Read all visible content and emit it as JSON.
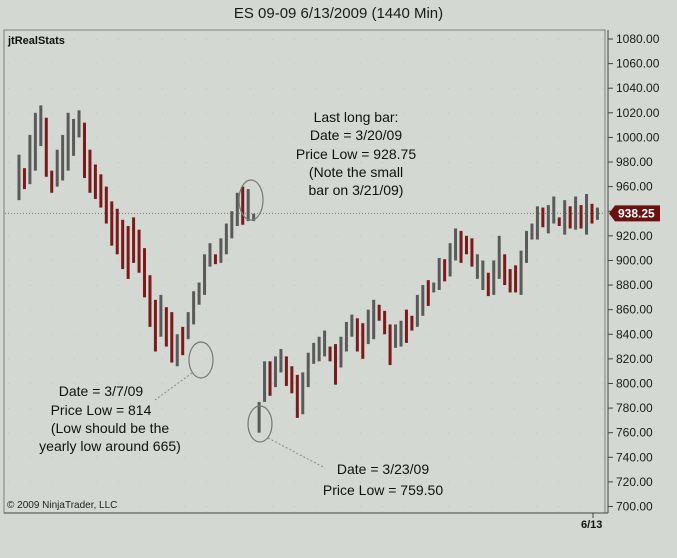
{
  "title": "ES 09-09  6/13/2009 (1440 Min)",
  "indicator_name": "jtRealStats",
  "copyright": "© 2009 NinjaTrader, LLC",
  "colors": {
    "up": "#5a5a5a",
    "down": "#7a1a1a",
    "price_marker": "#6b1010"
  },
  "chart_data": {
    "type": "ohlc",
    "ylim": [
      700,
      1085
    ],
    "y_ticks": [
      "1080.00",
      "1060.00",
      "1040.00",
      "1020.00",
      "1000.00",
      "980.00",
      "960.00",
      "940.00",
      "920.00",
      "900.00",
      "880.00",
      "860.00",
      "840.00",
      "820.00",
      "800.00",
      "780.00",
      "760.00",
      "740.00",
      "720.00",
      "700.00"
    ],
    "x_tick": "6/13",
    "last_price": 938.25,
    "last_price_label": "938.25",
    "bars": [
      {
        "h": 986,
        "l": 949,
        "up": true
      },
      {
        "h": 975,
        "l": 958,
        "up": false
      },
      {
        "h": 1002,
        "l": 962,
        "up": true
      },
      {
        "h": 1020,
        "l": 973,
        "up": true
      },
      {
        "h": 1026,
        "l": 993,
        "up": true
      },
      {
        "h": 1016,
        "l": 968,
        "up": false
      },
      {
        "h": 973,
        "l": 955,
        "up": false
      },
      {
        "h": 990,
        "l": 960,
        "up": true
      },
      {
        "h": 1002,
        "l": 965,
        "up": true
      },
      {
        "h": 1020,
        "l": 973,
        "up": true
      },
      {
        "h": 1015,
        "l": 985,
        "up": true
      },
      {
        "h": 1022,
        "l": 1000,
        "up": true
      },
      {
        "h": 1012,
        "l": 967,
        "up": false
      },
      {
        "h": 990,
        "l": 955,
        "up": false
      },
      {
        "h": 978,
        "l": 950,
        "up": false
      },
      {
        "h": 970,
        "l": 943,
        "up": false
      },
      {
        "h": 960,
        "l": 930,
        "up": false
      },
      {
        "h": 948,
        "l": 912,
        "up": false
      },
      {
        "h": 942,
        "l": 905,
        "up": false
      },
      {
        "h": 933,
        "l": 893,
        "up": false
      },
      {
        "h": 928,
        "l": 885,
        "up": false
      },
      {
        "h": 935,
        "l": 898,
        "up": false
      },
      {
        "h": 925,
        "l": 890,
        "up": false
      },
      {
        "h": 910,
        "l": 870,
        "up": false
      },
      {
        "h": 888,
        "l": 846,
        "up": false
      },
      {
        "h": 868,
        "l": 826,
        "up": false
      },
      {
        "h": 872,
        "l": 838,
        "up": true
      },
      {
        "h": 862,
        "l": 830,
        "up": false
      },
      {
        "h": 858,
        "l": 817,
        "up": false
      },
      {
        "h": 840,
        "l": 814,
        "up": true
      },
      {
        "h": 846,
        "l": 823,
        "up": false
      },
      {
        "h": 858,
        "l": 836,
        "up": true
      },
      {
        "h": 875,
        "l": 848,
        "up": true
      },
      {
        "h": 882,
        "l": 864,
        "up": true
      },
      {
        "h": 905,
        "l": 872,
        "up": true
      },
      {
        "h": 914,
        "l": 895,
        "up": true
      },
      {
        "h": 905,
        "l": 897,
        "up": false
      },
      {
        "h": 918,
        "l": 898,
        "up": true
      },
      {
        "h": 930,
        "l": 905,
        "up": true
      },
      {
        "h": 940,
        "l": 918,
        "up": true
      },
      {
        "h": 955,
        "l": 928,
        "up": true
      },
      {
        "h": 960,
        "l": 929,
        "up": false
      },
      {
        "h": 958,
        "l": 932,
        "up": true
      },
      {
        "h": 938,
        "l": 932,
        "up": true
      },
      {
        "h": 785,
        "l": 760,
        "up": true
      },
      {
        "h": 818,
        "l": 785,
        "up": true
      },
      {
        "h": 818,
        "l": 790,
        "up": false
      },
      {
        "h": 822,
        "l": 797,
        "up": true
      },
      {
        "h": 828,
        "l": 809,
        "up": true
      },
      {
        "h": 822,
        "l": 798,
        "up": false
      },
      {
        "h": 814,
        "l": 792,
        "up": false
      },
      {
        "h": 807,
        "l": 772,
        "up": false
      },
      {
        "h": 809,
        "l": 775,
        "up": true
      },
      {
        "h": 825,
        "l": 797,
        "up": true
      },
      {
        "h": 833,
        "l": 816,
        "up": true
      },
      {
        "h": 838,
        "l": 818,
        "up": true
      },
      {
        "h": 843,
        "l": 822,
        "up": true
      },
      {
        "h": 830,
        "l": 818,
        "up": false
      },
      {
        "h": 832,
        "l": 799,
        "up": false
      },
      {
        "h": 838,
        "l": 813,
        "up": true
      },
      {
        "h": 850,
        "l": 826,
        "up": true
      },
      {
        "h": 856,
        "l": 838,
        "up": true
      },
      {
        "h": 853,
        "l": 826,
        "up": false
      },
      {
        "h": 849,
        "l": 820,
        "up": false
      },
      {
        "h": 860,
        "l": 832,
        "up": true
      },
      {
        "h": 868,
        "l": 836,
        "up": true
      },
      {
        "h": 864,
        "l": 851,
        "up": false
      },
      {
        "h": 859,
        "l": 840,
        "up": false
      },
      {
        "h": 848,
        "l": 815,
        "up": false
      },
      {
        "h": 848,
        "l": 829,
        "up": true
      },
      {
        "h": 851,
        "l": 830,
        "up": true
      },
      {
        "h": 860,
        "l": 833,
        "up": false
      },
      {
        "h": 855,
        "l": 843,
        "up": false
      },
      {
        "h": 872,
        "l": 846,
        "up": true
      },
      {
        "h": 880,
        "l": 855,
        "up": true
      },
      {
        "h": 884,
        "l": 863,
        "up": false
      },
      {
        "h": 882,
        "l": 874,
        "up": true
      },
      {
        "h": 902,
        "l": 876,
        "up": true
      },
      {
        "h": 901,
        "l": 883,
        "up": false
      },
      {
        "h": 914,
        "l": 887,
        "up": true
      },
      {
        "h": 926,
        "l": 900,
        "up": true
      },
      {
        "h": 924,
        "l": 898,
        "up": false
      },
      {
        "h": 920,
        "l": 905,
        "up": false
      },
      {
        "h": 918,
        "l": 895,
        "up": false
      },
      {
        "h": 905,
        "l": 885,
        "up": true
      },
      {
        "h": 900,
        "l": 876,
        "up": true
      },
      {
        "h": 890,
        "l": 871,
        "up": false
      },
      {
        "h": 900,
        "l": 872,
        "up": true
      },
      {
        "h": 920,
        "l": 885,
        "up": true
      },
      {
        "h": 905,
        "l": 880,
        "up": false
      },
      {
        "h": 893,
        "l": 874,
        "up": false
      },
      {
        "h": 896,
        "l": 874,
        "up": false
      },
      {
        "h": 908,
        "l": 872,
        "up": true
      },
      {
        "h": 924,
        "l": 898,
        "up": true
      },
      {
        "h": 930,
        "l": 917,
        "up": true
      },
      {
        "h": 944,
        "l": 917,
        "up": true
      },
      {
        "h": 943,
        "l": 927,
        "up": false
      },
      {
        "h": 945,
        "l": 922,
        "up": true
      },
      {
        "h": 952,
        "l": 930,
        "up": true
      },
      {
        "h": 935,
        "l": 928,
        "up": false
      },
      {
        "h": 949,
        "l": 921,
        "up": true
      },
      {
        "h": 944,
        "l": 926,
        "up": false
      },
      {
        "h": 952,
        "l": 925,
        "up": true
      },
      {
        "h": 945,
        "l": 926,
        "up": false
      },
      {
        "h": 954,
        "l": 921,
        "up": true
      },
      {
        "h": 946,
        "l": 930,
        "up": false
      },
      {
        "h": 943,
        "l": 933,
        "up": true
      }
    ]
  },
  "annotations": [
    {
      "lines": [
        "Last long bar:",
        "Date = 3/20/09",
        "Price Low = 928.75",
        "(Note the small",
        "bar on 3/21/09)"
      ]
    },
    {
      "lines": [
        "Date = 3/7/09",
        "Price Low = 814",
        "(Low should be the",
        "yearly low around 665)"
      ]
    },
    {
      "lines": [
        "Date = 3/23/09",
        "Price Low = 759.50"
      ]
    }
  ]
}
